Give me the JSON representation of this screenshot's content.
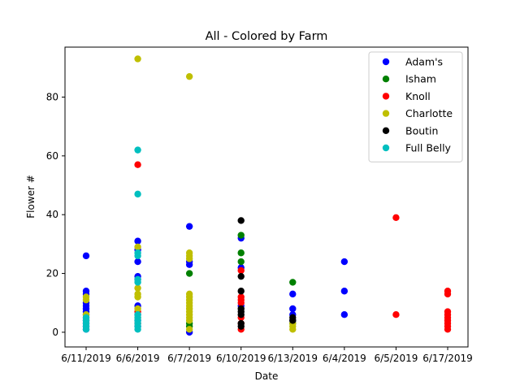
{
  "chart_data": {
    "type": "scatter",
    "title": "All - Colored by Farm",
    "xlabel": "Date",
    "ylabel": "Flower #",
    "categories": [
      "6/11/2019",
      "6/6/2019",
      "6/7/2019",
      "6/10/2019",
      "6/13/2019",
      "6/4/2019",
      "6/5/2019",
      "6/17/2019"
    ],
    "ylim": [
      -5,
      97
    ],
    "yticks": [
      0,
      20,
      40,
      60,
      80
    ],
    "grid": false,
    "legend_position": "top-right",
    "series": [
      {
        "name": "Adam's",
        "color": "#0000ff",
        "points": [
          [
            "6/11/2019",
            26
          ],
          [
            "6/11/2019",
            14
          ],
          [
            "6/11/2019",
            13
          ],
          [
            "6/11/2019",
            10
          ],
          [
            "6/11/2019",
            9
          ],
          [
            "6/11/2019",
            8
          ],
          [
            "6/11/2019",
            7
          ],
          [
            "6/11/2019",
            6
          ],
          [
            "6/11/2019",
            5
          ],
          [
            "6/11/2019",
            4
          ],
          [
            "6/11/2019",
            3
          ],
          [
            "6/11/2019",
            2
          ],
          [
            "6/11/2019",
            1
          ],
          [
            "6/6/2019",
            31
          ],
          [
            "6/6/2019",
            28
          ],
          [
            "6/6/2019",
            24
          ],
          [
            "6/6/2019",
            19
          ],
          [
            "6/6/2019",
            18
          ],
          [
            "6/6/2019",
            9
          ],
          [
            "6/6/2019",
            6
          ],
          [
            "6/6/2019",
            4
          ],
          [
            "6/6/2019",
            2
          ],
          [
            "6/7/2019",
            36
          ],
          [
            "6/7/2019",
            24
          ],
          [
            "6/7/2019",
            23
          ],
          [
            "6/7/2019",
            0
          ],
          [
            "6/10/2019",
            32
          ],
          [
            "6/10/2019",
            22
          ],
          [
            "6/10/2019",
            9
          ],
          [
            "6/13/2019",
            13
          ],
          [
            "6/13/2019",
            8
          ],
          [
            "6/13/2019",
            6
          ],
          [
            "6/13/2019",
            4
          ],
          [
            "6/4/2019",
            24
          ],
          [
            "6/4/2019",
            14
          ],
          [
            "6/4/2019",
            6
          ]
        ]
      },
      {
        "name": "Isham",
        "color": "#008000",
        "points": [
          [
            "6/7/2019",
            20
          ],
          [
            "6/7/2019",
            3
          ],
          [
            "6/7/2019",
            2
          ],
          [
            "6/10/2019",
            33
          ],
          [
            "6/10/2019",
            27
          ],
          [
            "6/10/2019",
            24
          ],
          [
            "6/13/2019",
            17
          ],
          [
            "6/13/2019",
            3
          ]
        ]
      },
      {
        "name": "Knoll",
        "color": "#ff0000",
        "points": [
          [
            "6/6/2019",
            57
          ],
          [
            "6/6/2019",
            7
          ],
          [
            "6/6/2019",
            3
          ],
          [
            "6/10/2019",
            21
          ],
          [
            "6/10/2019",
            12
          ],
          [
            "6/10/2019",
            11
          ],
          [
            "6/10/2019",
            10
          ],
          [
            "6/10/2019",
            5
          ],
          [
            "6/10/2019",
            3
          ],
          [
            "6/10/2019",
            1
          ],
          [
            "6/5/2019",
            39
          ],
          [
            "6/5/2019",
            6
          ],
          [
            "6/17/2019",
            14
          ],
          [
            "6/17/2019",
            13
          ],
          [
            "6/17/2019",
            7
          ],
          [
            "6/17/2019",
            6
          ],
          [
            "6/17/2019",
            5
          ],
          [
            "6/17/2019",
            4
          ],
          [
            "6/17/2019",
            3
          ],
          [
            "6/17/2019",
            2
          ],
          [
            "6/17/2019",
            1
          ]
        ]
      },
      {
        "name": "Charlotte",
        "color": "#bfbf00",
        "points": [
          [
            "6/11/2019",
            12
          ],
          [
            "6/11/2019",
            11
          ],
          [
            "6/11/2019",
            6
          ],
          [
            "6/6/2019",
            93
          ],
          [
            "6/6/2019",
            29
          ],
          [
            "6/6/2019",
            15
          ],
          [
            "6/6/2019",
            13
          ],
          [
            "6/6/2019",
            12
          ],
          [
            "6/6/2019",
            8
          ],
          [
            "6/6/2019",
            5
          ],
          [
            "6/7/2019",
            87
          ],
          [
            "6/7/2019",
            27
          ],
          [
            "6/7/2019",
            26
          ],
          [
            "6/7/2019",
            25
          ],
          [
            "6/7/2019",
            13
          ],
          [
            "6/7/2019",
            12
          ],
          [
            "6/7/2019",
            11
          ],
          [
            "6/7/2019",
            10
          ],
          [
            "6/7/2019",
            9
          ],
          [
            "6/7/2019",
            8
          ],
          [
            "6/7/2019",
            7
          ],
          [
            "6/7/2019",
            6
          ],
          [
            "6/7/2019",
            5
          ],
          [
            "6/7/2019",
            4
          ],
          [
            "6/7/2019",
            1
          ],
          [
            "6/13/2019",
            3
          ],
          [
            "6/13/2019",
            2
          ],
          [
            "6/13/2019",
            1
          ]
        ]
      },
      {
        "name": "Boutin",
        "color": "#000000",
        "points": [
          [
            "6/10/2019",
            38
          ],
          [
            "6/10/2019",
            19
          ],
          [
            "6/10/2019",
            14
          ],
          [
            "6/10/2019",
            8
          ],
          [
            "6/10/2019",
            7
          ],
          [
            "6/10/2019",
            6
          ],
          [
            "6/10/2019",
            3
          ],
          [
            "6/10/2019",
            2
          ],
          [
            "6/13/2019",
            5
          ],
          [
            "6/13/2019",
            4
          ]
        ]
      },
      {
        "name": "Full Belly",
        "color": "#00bfbf",
        "points": [
          [
            "6/11/2019",
            5
          ],
          [
            "6/11/2019",
            4
          ],
          [
            "6/11/2019",
            3
          ],
          [
            "6/11/2019",
            2
          ],
          [
            "6/11/2019",
            1
          ],
          [
            "6/6/2019",
            62
          ],
          [
            "6/6/2019",
            47
          ],
          [
            "6/6/2019",
            27
          ],
          [
            "6/6/2019",
            26
          ],
          [
            "6/6/2019",
            18
          ],
          [
            "6/6/2019",
            17
          ],
          [
            "6/6/2019",
            6
          ],
          [
            "6/6/2019",
            5
          ],
          [
            "6/6/2019",
            4
          ],
          [
            "6/6/2019",
            3
          ],
          [
            "6/6/2019",
            2
          ],
          [
            "6/6/2019",
            1
          ]
        ]
      }
    ]
  }
}
